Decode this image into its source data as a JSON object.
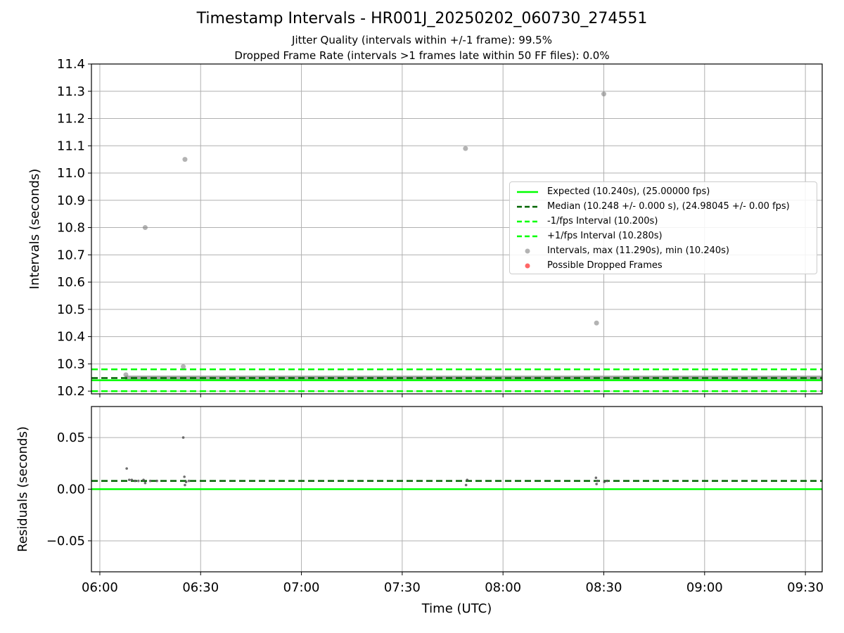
{
  "header": {
    "title": "Timestamp Intervals - HR001J_20250202_060730_274551",
    "subtitle_1": "Jitter Quality (intervals within +/-1 frame): 99.5%",
    "subtitle_2": "Dropped Frame Rate (intervals >1 frames late within 50 FF files): 0.0%"
  },
  "colors": {
    "expected": "#00ff00",
    "median": "#006400",
    "bounds": "#00ff00",
    "intervals": "#808080",
    "residuals": "#555555",
    "dropped": "#ff0000",
    "grid": "#b0b0b0"
  },
  "legend": {
    "items": [
      {
        "label": "Expected (10.240s), (25.00000 fps)",
        "style": "solid",
        "color": "#00ff00"
      },
      {
        "label": "Median (10.248 +/- 0.000 s), (24.98045 +/- 0.00 fps)",
        "style": "dashed",
        "color": "#006400"
      },
      {
        "label": "-1/fps Interval (10.200s)",
        "style": "dashed",
        "color": "#00ff00"
      },
      {
        "label": "+1/fps Interval (10.280s)",
        "style": "dashed",
        "color": "#00ff00"
      },
      {
        "label": "Intervals, max (11.290s), min (10.240s)",
        "style": "dot",
        "color": "#808080"
      },
      {
        "label": "Possible Dropped Frames",
        "style": "dot",
        "color": "#ff0000"
      }
    ]
  },
  "chart_data": [
    {
      "type": "scatter",
      "title": "Timestamp Intervals - HR001J_20250202_060730_274551",
      "xlabel": "",
      "ylabel": "Intervals (seconds)",
      "xlim": [
        "05:57:30",
        "09:35:00"
      ],
      "ylim": [
        10.19,
        11.4
      ],
      "yticks": [
        "10.2",
        "10.3",
        "10.4",
        "10.5",
        "10.6",
        "10.7",
        "10.8",
        "10.9",
        "11.0",
        "11.1",
        "11.2",
        "11.3",
        "11.4"
      ],
      "grid": true,
      "legend_position": "right",
      "reference_lines": {
        "expected": 10.24,
        "median": 10.248,
        "lower": 10.2,
        "upper": 10.28
      },
      "baseline": {
        "x_start": "06:07:30",
        "x_end": "09:35:00",
        "y": 10.248
      },
      "series": [
        {
          "name": "Intervals, max (11.290s), min (10.240s)",
          "x": [
            "06:07:45",
            "06:13:30",
            "06:24:50",
            "06:25:20",
            "07:48:50",
            "08:27:50",
            "08:30:00"
          ],
          "y": [
            10.26,
            10.8,
            10.29,
            11.05,
            11.09,
            10.45,
            11.29
          ]
        },
        {
          "name": "Possible Dropped Frames",
          "x": [],
          "y": []
        }
      ]
    },
    {
      "type": "scatter",
      "title": "",
      "xlabel": "Time (UTC)",
      "ylabel": "Residuals (seconds)",
      "xlim": [
        "05:57:30",
        "09:35:00"
      ],
      "ylim": [
        -0.08,
        0.08
      ],
      "xticks": [
        "06:00",
        "06:30",
        "07:00",
        "07:30",
        "08:00",
        "08:30",
        "09:00",
        "09:30"
      ],
      "yticks": [
        "0.05",
        "0.00",
        "−0.05"
      ],
      "grid": true,
      "reference_lines": {
        "expected": 0.0,
        "median": 0.008
      },
      "series": [
        {
          "name": "",
          "x": [
            "06:08:00",
            "06:08:45",
            "06:09:30",
            "06:10:30",
            "06:11:30",
            "06:13:00",
            "06:13:30",
            "06:15:00",
            "06:17:00",
            "06:24:50",
            "06:25:10",
            "06:25:20",
            "06:25:40",
            "06:26:30",
            "07:49:00",
            "07:49:20",
            "08:27:40",
            "08:27:50",
            "08:28:10",
            "08:30:10",
            "08:31:00"
          ],
          "y": [
            0.02,
            0.009,
            0.009,
            0.008,
            0.008,
            0.009,
            0.006,
            0.008,
            0.008,
            0.05,
            0.012,
            0.004,
            0.007,
            0.008,
            0.004,
            0.009,
            0.011,
            0.005,
            0.008,
            0.007,
            0.008
          ]
        }
      ]
    }
  ]
}
